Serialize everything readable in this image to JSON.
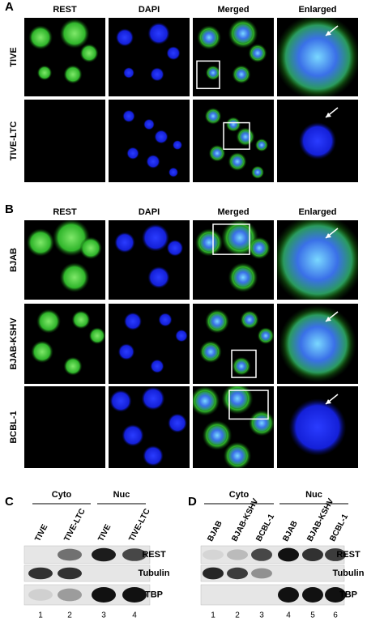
{
  "panel_a": {
    "label": "A",
    "columns": [
      "REST",
      "DAPI",
      "Merged",
      "Enlarged"
    ],
    "rows": [
      "TIVE",
      "TIVE-LTC"
    ]
  },
  "panel_b": {
    "label": "B",
    "columns": [
      "REST",
      "DAPI",
      "Merged",
      "Enlarged"
    ],
    "rows": [
      "BJAB",
      "BJAB-KSHV",
      "BCBL-1"
    ]
  },
  "panel_c": {
    "label": "C",
    "groups": [
      "Cyto",
      "Nuc"
    ],
    "lanes": [
      "TIVE",
      "TIVE-LTC",
      "TIVE",
      "TIVE-LTC"
    ],
    "lane_numbers": [
      "1",
      "2",
      "3",
      "4"
    ],
    "blots": [
      "REST",
      "Tubulin",
      "TBP"
    ]
  },
  "panel_d": {
    "label": "D",
    "groups": [
      "Cyto",
      "Nuc"
    ],
    "lanes": [
      "BJAB",
      "BJAB-KSHV",
      "BCBL-1",
      "BJAB",
      "BJAB-KSHV",
      "BCBL-1"
    ],
    "lane_numbers": [
      "1",
      "2",
      "3",
      "4",
      "5",
      "6"
    ],
    "blots": [
      "REST",
      "Tubulin",
      "TBP"
    ]
  }
}
